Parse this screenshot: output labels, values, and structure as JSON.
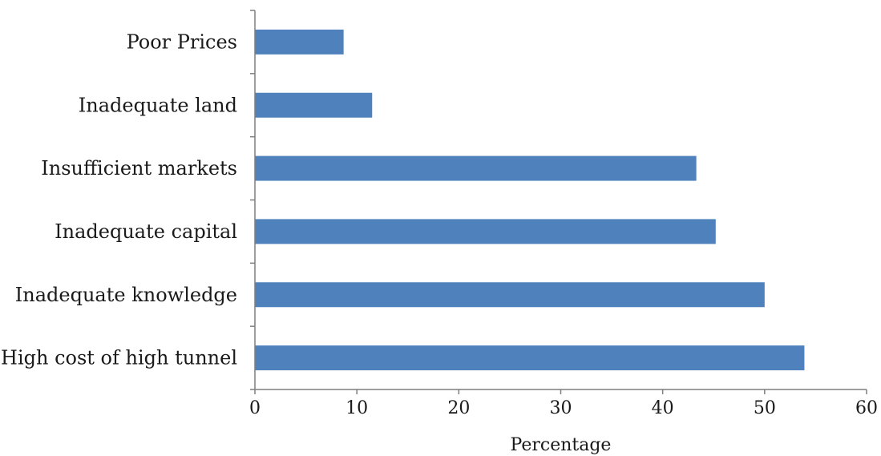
{
  "chart_data": {
    "type": "bar",
    "orientation": "horizontal",
    "categories": [
      "High cost of high tunnel",
      "Inadequate knowledge",
      "Inadequate capital",
      "Insufficient markets",
      "Inadequate land",
      "Poor Prices"
    ],
    "values": [
      53.9,
      50.0,
      45.2,
      43.3,
      11.5,
      8.7
    ],
    "xlabel": "Percentage",
    "ylabel": "",
    "xlim": [
      0,
      60
    ],
    "xticks": [
      0,
      10,
      20,
      30,
      40,
      50,
      60
    ],
    "grid": false,
    "legend": "none",
    "bar_color": "#4F81BD",
    "axis_color": "#7f7f7f"
  }
}
